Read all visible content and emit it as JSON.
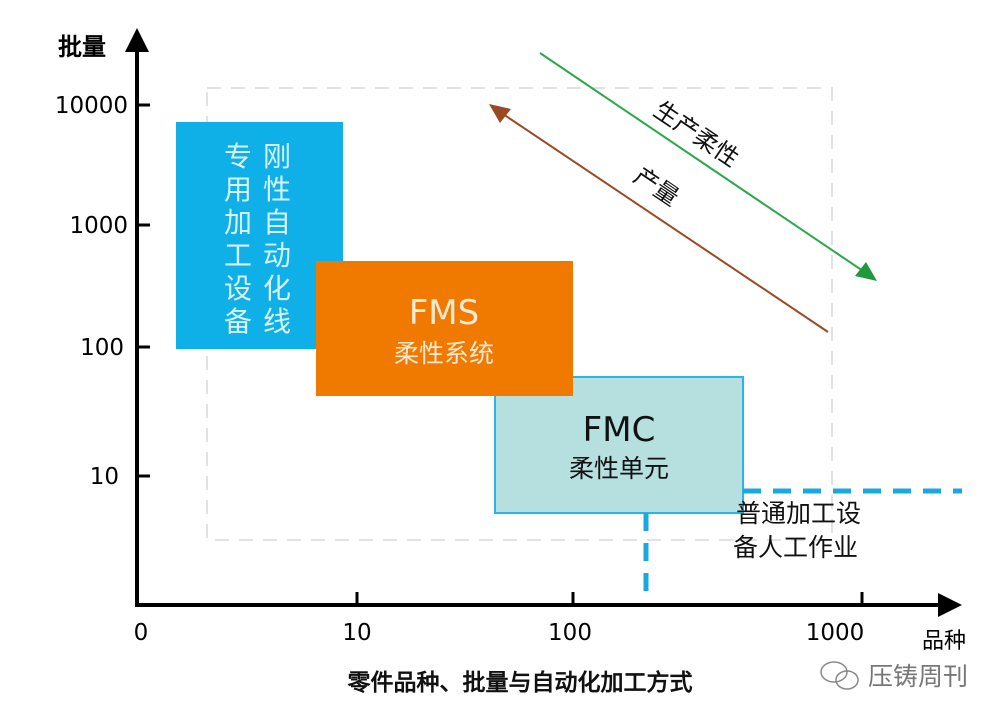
{
  "axes": {
    "y_label": "批量",
    "x_label": "品种",
    "y_ticks": [
      "10000",
      "1000",
      "100",
      "10"
    ],
    "x_ticks": [
      "0",
      "10",
      "100",
      "1000"
    ]
  },
  "boxes": {
    "dedicated": {
      "col1": [
        "专",
        "用",
        "加",
        "工",
        "设",
        "备"
      ],
      "col2": [
        "刚",
        "性",
        "自",
        "动",
        "化",
        "线"
      ],
      "color": "#0fb0e8"
    },
    "fms": {
      "title": "FMS",
      "subtitle": "柔性系统",
      "color": "#f07a00"
    },
    "fmc": {
      "title": "FMC",
      "subtitle": "柔性单元",
      "color": "#b6dfe0",
      "border": "#2bb5e6"
    }
  },
  "manual": {
    "line1": "普通加工设",
    "line2": "备人工作业",
    "color": "#1aa8e0"
  },
  "arrows": {
    "flexibility": {
      "label": "生产柔性",
      "color": "#2aa84a"
    },
    "output": {
      "label": "产量",
      "color": "#9a4a22"
    }
  },
  "caption": "零件品种、批量与自动化加工方式",
  "watermark": "压铸周刊"
}
